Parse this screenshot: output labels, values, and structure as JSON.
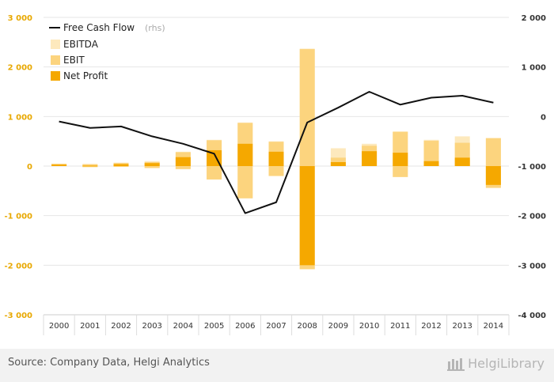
{
  "chart_data": {
    "type": "bar",
    "categories": [
      "2000",
      "2001",
      "2002",
      "2003",
      "2004",
      "2005",
      "2006",
      "2007",
      "2008",
      "2009",
      "2010",
      "2011",
      "2012",
      "2013",
      "2014"
    ],
    "series": [
      {
        "name": "EBITDA",
        "values": [
          50,
          45,
          70,
          100,
          290,
          530,
          880,
          500,
          2370,
          360,
          450,
          700,
          530,
          600,
          570
        ]
      },
      {
        "name": "EBIT",
        "values": [
          45,
          35,
          60,
          80,
          280,
          520,
          870,
          490,
          2360,
          170,
          410,
          690,
          510,
          470,
          560
        ]
      },
      {
        "name": "Net Profit",
        "values": [
          30,
          10,
          40,
          60,
          180,
          320,
          450,
          290,
          -2000,
          80,
          300,
          270,
          100,
          170,
          -380
        ]
      }
    ],
    "negative": {
      "EBITDA": [
        0,
        -20,
        -10,
        -40,
        -60,
        -270,
        -650,
        -200,
        -2080,
        0,
        0,
        -220,
        0,
        0,
        -440
      ],
      "EBIT": [
        0,
        -20,
        -10,
        -40,
        -60,
        -270,
        -650,
        -200,
        -2080,
        0,
        0,
        -220,
        0,
        0,
        -440
      ]
    },
    "line": {
      "name": "Free Cash Flow",
      "unit": "(rhs)",
      "values": [
        -100,
        -230,
        -200,
        -400,
        -550,
        -750,
        -1950,
        -1730,
        -120,
        180,
        500,
        240,
        380,
        420,
        280
      ]
    },
    "ylim_left": [
      -3000,
      3000
    ],
    "ylim_right": [
      -4000,
      2000
    ],
    "yticks_left": [
      "3 000",
      "2 000",
      "1 000",
      "0",
      "-1 000",
      "-2 000",
      "-3 000"
    ],
    "yticks_right": [
      "2 000",
      "1 000",
      "0",
      "-1 000",
      "-2 000",
      "-3 000",
      "-4 000"
    ],
    "legend_position": "top-left",
    "colors": {
      "EBITDA": "#fde9bd",
      "EBIT": "#fcd47e",
      "Net Profit": "#f5a800",
      "Free Cash Flow": "#111111",
      "grid": "#e6e6e6"
    }
  },
  "footer": {
    "source": "Source: Company Data, Helgi Analytics",
    "brand": "HelgiLibrary"
  }
}
